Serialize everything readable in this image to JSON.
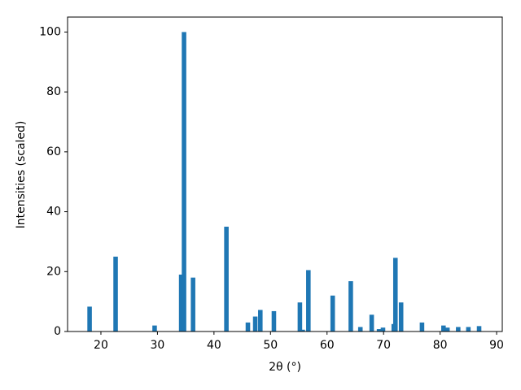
{
  "chart_data": {
    "type": "bar",
    "x_label": "2θ (°)",
    "y_label": "Intensities (scaled)",
    "color": "#1f77b4",
    "x": [
      18.0,
      22.6,
      29.5,
      34.2,
      34.7,
      36.3,
      42.2,
      46.0,
      47.3,
      48.2,
      50.6,
      55.2,
      55.7,
      56.7,
      61.0,
      64.2,
      65.9,
      67.9,
      69.2,
      69.9,
      71.8,
      72.1,
      73.1,
      76.8,
      80.6,
      81.3,
      83.2,
      85.0,
      86.9
    ],
    "values": [
      8.3,
      25,
      2,
      19,
      100,
      18,
      35,
      3,
      5,
      7.2,
      6.8,
      9.7,
      0.6,
      20.5,
      12,
      16.8,
      1.5,
      5.6,
      0.8,
      1.3,
      2.5,
      24.6,
      9.7,
      3,
      2,
      1.3,
      1.5,
      1.5,
      1.8
    ],
    "xlim": [
      14.1,
      91.0
    ],
    "xticks": [
      20,
      30,
      40,
      50,
      60,
      70,
      80,
      90
    ],
    "ylim": [
      0,
      105
    ],
    "yticks": [
      0,
      20,
      40,
      60,
      80,
      100
    ]
  }
}
